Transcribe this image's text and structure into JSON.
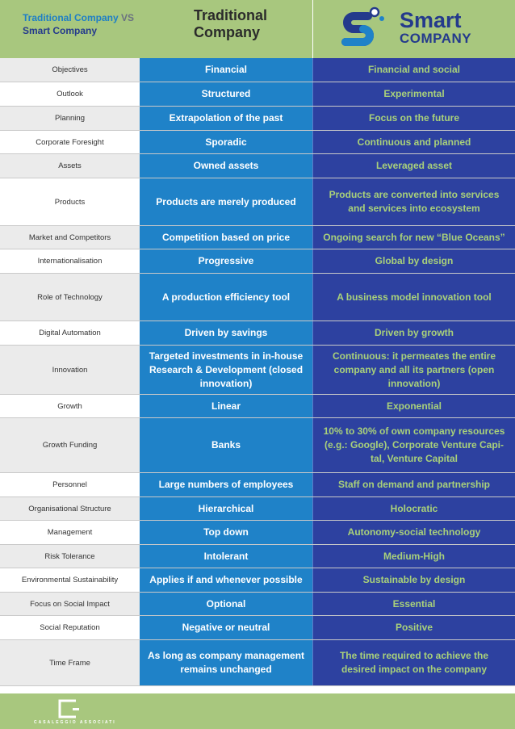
{
  "header": {
    "left_line1_a": "Traditional Company",
    "left_line1_b": " VS",
    "left_line2": "Smart Company",
    "traditional_title_1": "Traditional",
    "traditional_title_2": "Company",
    "smart_logo_word1": "Smart",
    "smart_logo_word2": "COMPANY"
  },
  "rows": [
    {
      "label": "Objectives",
      "traditional": "Financial",
      "smart": "Financial and social"
    },
    {
      "label": "Outlook",
      "traditional": "Structured",
      "smart": "Experimental"
    },
    {
      "label": "Planning",
      "traditional": "Extrapolation of the past",
      "smart": "Focus on the future"
    },
    {
      "label": "Corporate Foresight",
      "traditional": "Sporadic",
      "smart": "Continuous and planned"
    },
    {
      "label": "Assets",
      "traditional": "Owned assets",
      "smart": "Leveraged asset"
    },
    {
      "label": "Products",
      "traditional": "Products are merely produced",
      "smart": "Products are converted into services and services into ecosystem"
    },
    {
      "label": "Market and Competitors",
      "traditional": "Competition based on price",
      "smart": "Ongoing search for new “Blue Oceans”"
    },
    {
      "label": "Internationalisation",
      "traditional": "Progressive",
      "smart": "Global by design"
    },
    {
      "label": "Role of Technology",
      "traditional": "A production efficiency tool",
      "smart": "A business model innovation tool"
    },
    {
      "label": "Digital Automation",
      "traditional": "Driven by savings",
      "smart": "Driven by growth"
    },
    {
      "label": "Innovation",
      "traditional": "Targeted investments in in-house Research & Development (closed innovation)",
      "smart": "Continuous: it permeates the entire company and all its partners (open innovation)"
    },
    {
      "label": "Growth",
      "traditional": "Linear",
      "smart": "Exponential"
    },
    {
      "label": "Growth Funding",
      "traditional": "Banks",
      "smart": "10% to 30% of own company resources (e.g.: Google), Corporate Venture Capi-tal, Venture Capital"
    },
    {
      "label": "Personnel",
      "traditional": "Large numbers of employees",
      "smart": "Staff on demand and partnership"
    },
    {
      "label": "Organisational Structure",
      "traditional": "Hierarchical",
      "smart": "Holocratic"
    },
    {
      "label": "Management",
      "traditional": "Top down",
      "smart": "Autonomy-social technology"
    },
    {
      "label": "Risk Tolerance",
      "traditional": "Intolerant",
      "smart": "Medium-High"
    },
    {
      "label": "Environmental Sustainability",
      "traditional": "Applies if and whenever possible",
      "smart": "Sustainable by design"
    },
    {
      "label": "Focus on Social Impact",
      "traditional": "Optional",
      "smart": "Essential"
    },
    {
      "label": "Social Reputation",
      "traditional": "Negative or neutral",
      "smart": "Positive"
    },
    {
      "label": "Time Frame",
      "traditional": "As long as company management remains unchanged",
      "smart": "The time required to achieve the desired impact on the company"
    }
  ],
  "footer": {
    "brand": "CASALEGGIO ASSOCIATI"
  },
  "colors": {
    "header_green": "#a8c77e",
    "traditional_blue": "#1f82c8",
    "smart_navy": "#2d41a0",
    "smart_text_green": "#a9d17a"
  }
}
